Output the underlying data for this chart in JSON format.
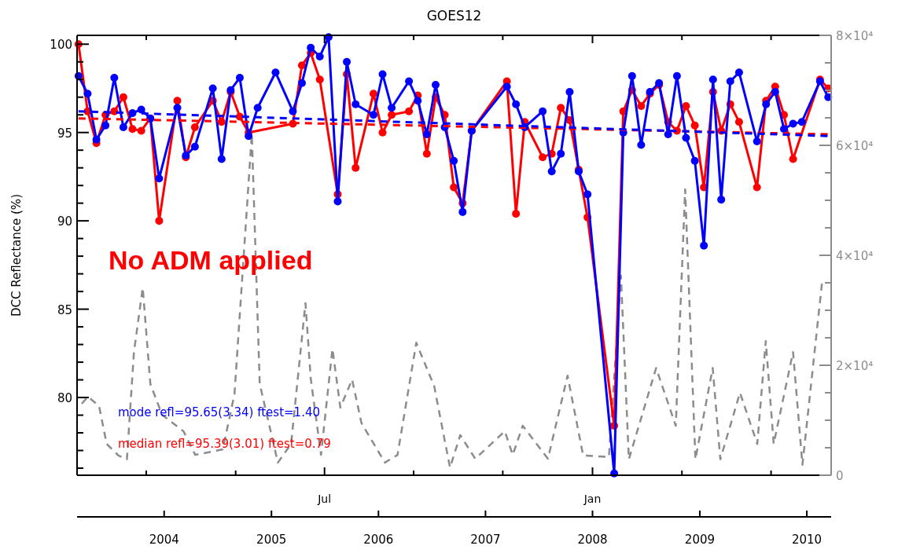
{
  "chart_data": {
    "type": "line",
    "title": "GOES12",
    "ylabel": "DCC Reflectance (%)",
    "xlim": [
      "2003-03-10",
      "2010-03-25"
    ],
    "xticks": [
      {
        "value": "2003-11-01",
        "label": null
      },
      {
        "value": "2004-09-01",
        "label": null
      },
      {
        "value": "2005-07-01",
        "label": "Jul"
      },
      {
        "value": "2006-05-01",
        "label": null
      },
      {
        "value": "2007-03-01",
        "label": null
      },
      {
        "value": "2008-01-01",
        "label": "Jan"
      },
      {
        "value": "2008-11-01",
        "label": null
      },
      {
        "value": "2009-09-01",
        "label": null
      }
    ],
    "x2lim": [
      "2003-03-10",
      "2010-03-25"
    ],
    "x2ticks": [
      {
        "value": "2004-01-01",
        "label": "2004"
      },
      {
        "value": "2005-01-01",
        "label": "2005"
      },
      {
        "value": "2006-01-01",
        "label": "2006"
      },
      {
        "value": "2007-01-01",
        "label": "2007"
      },
      {
        "value": "2008-01-01",
        "label": "2008"
      },
      {
        "value": "2009-01-01",
        "label": "2009"
      },
      {
        "value": "2010-01-01",
        "label": "2010"
      }
    ],
    "ylim": [
      75.6,
      100.5
    ],
    "yticks": [
      {
        "value": 76,
        "label": null
      },
      {
        "value": 77,
        "label": null
      },
      {
        "value": 78,
        "label": null
      },
      {
        "value": 79,
        "label": null
      },
      80,
      {
        "value": 81,
        "label": null
      },
      {
        "value": 82,
        "label": null
      },
      {
        "value": 83,
        "label": null
      },
      {
        "value": 84,
        "label": null
      },
      85,
      {
        "value": 86,
        "label": null
      },
      {
        "value": 87,
        "label": null
      },
      {
        "value": 88,
        "label": null
      },
      {
        "value": 89,
        "label": null
      },
      90,
      {
        "value": 91,
        "label": null
      },
      {
        "value": 92,
        "label": null
      },
      {
        "value": 93,
        "label": null
      },
      {
        "value": 94,
        "label": null
      },
      95,
      {
        "value": 96,
        "label": null
      },
      {
        "value": 97,
        "label": null
      },
      {
        "value": 98,
        "label": null
      },
      {
        "value": 99,
        "label": null
      },
      100
    ],
    "y2lim": [
      0,
      80000
    ],
    "y2ticks": [
      0,
      {
        "value": 5000,
        "label": null
      },
      {
        "value": 10000,
        "label": null
      },
      {
        "value": 15000,
        "label": null
      },
      {
        "value": 20000,
        "label": "2×10⁴"
      },
      {
        "value": 25000,
        "label": null
      },
      {
        "value": 30000,
        "label": null
      },
      {
        "value": 35000,
        "label": null
      },
      {
        "value": 40000,
        "label": "4×10⁴"
      },
      {
        "value": 45000,
        "label": null
      },
      {
        "value": 50000,
        "label": null
      },
      {
        "value": 55000,
        "label": null
      },
      {
        "value": 60000,
        "label": "6×10⁴"
      },
      {
        "value": 65000,
        "label": null
      },
      {
        "value": 70000,
        "label": null
      },
      {
        "value": 75000,
        "label": null
      },
      {
        "value": 80000,
        "label": "8×10⁴"
      }
    ],
    "x": [
      "2003-03-15",
      "2003-04-15",
      "2003-05-15",
      "2003-06-15",
      "2003-07-15",
      "2003-08-15",
      "2003-09-15",
      "2003-10-15",
      "2003-11-15",
      "2003-12-15",
      "2004-02-15",
      "2004-03-15",
      "2004-04-15",
      "2004-06-15",
      "2004-07-15",
      "2004-08-15",
      "2004-09-15",
      "2004-10-15",
      "2004-11-15",
      "2005-01-15",
      "2005-03-15",
      "2005-04-15",
      "2005-05-15",
      "2005-06-15",
      "2005-07-15",
      "2005-08-15",
      "2005-09-15",
      "2005-10-15",
      "2005-12-15",
      "2006-01-15",
      "2006-02-15",
      "2006-04-15",
      "2006-05-15",
      "2006-06-15",
      "2006-07-15",
      "2006-08-15",
      "2006-09-15",
      "2006-10-15",
      "2006-11-15",
      "2007-03-15",
      "2007-04-15",
      "2007-05-15",
      "2007-07-15",
      "2007-08-15",
      "2007-09-15",
      "2007-10-15",
      "2007-11-15",
      "2007-12-15",
      "2008-03-15",
      "2008-04-15",
      "2008-05-15",
      "2008-06-15",
      "2008-07-15",
      "2008-08-15",
      "2008-09-15",
      "2008-10-15",
      "2008-11-15",
      "2008-12-15",
      "2009-01-15",
      "2009-02-15",
      "2009-03-15",
      "2009-04-15",
      "2009-05-15",
      "2009-07-15",
      "2009-08-15",
      "2009-09-15",
      "2009-10-15",
      "2009-11-15",
      "2009-12-15",
      "2010-02-15",
      "2010-03-15"
    ],
    "series": [
      {
        "axis": "y2",
        "color": "#8c8c8c",
        "line_style": "dashed",
        "marker": "none",
        "x": [
          "2003-03-26",
          "2003-04-16",
          "2003-05-24",
          "2003-06-19",
          "2003-07-29",
          "2003-08-27",
          "2003-09-20",
          "2003-10-20",
          "2003-11-15",
          "2003-12-25",
          "2004-03-07",
          "2004-04-16",
          "2004-07-19",
          "2004-08-28",
          "2004-10-26",
          "2004-11-22",
          "2005-01-23",
          "2005-03-09",
          "2005-04-27",
          "2005-05-15",
          "2005-06-19",
          "2005-07-28",
          "2005-08-24",
          "2005-10-03",
          "2005-11-04",
          "2006-01-23",
          "2006-03-07",
          "2006-05-10",
          "2006-07-10",
          "2006-09-02",
          "2006-10-07",
          "2006-11-27",
          "2007-03-08",
          "2007-04-04",
          "2007-05-08",
          "2007-08-02",
          "2007-10-08",
          "2007-11-30",
          "2008-02-26",
          "2008-04-07",
          "2008-05-04",
          "2008-08-05",
          "2008-10-11",
          "2008-11-12",
          "2008-12-17",
          "2009-02-14",
          "2009-03-12",
          "2009-05-18",
          "2009-07-16",
          "2009-08-14",
          "2009-09-10",
          "2009-11-15",
          "2009-12-17",
          "2010-02-23"
        ],
        "values": [
          13000,
          14300,
          12600,
          5700,
          3600,
          2900,
          22400,
          34100,
          16600,
          11000,
          8000,
          3700,
          4700,
          14800,
          62000,
          16600,
          2300,
          5700,
          31300,
          17600,
          3700,
          23000,
          12300,
          17400,
          9500,
          2300,
          3700,
          24100,
          16200,
          1400,
          7300,
          3000,
          8000,
          3700,
          9000,
          3000,
          18100,
          3600,
          3300,
          36300,
          2900,
          19500,
          9000,
          52000,
          2900,
          19500,
          2900,
          15000,
          5700,
          24400,
          5700,
          22400,
          1900,
          35600
        ]
      },
      {
        "color": "#ff0000",
        "marker": "circle",
        "values": [
          100.0,
          96.2,
          94.4,
          96.0,
          96.2,
          97.0,
          95.2,
          95.1,
          95.8,
          90.0,
          96.8,
          93.6,
          95.3,
          96.8,
          95.6,
          97.3,
          95.9,
          95.0,
          null,
          null,
          95.5,
          98.8,
          99.5,
          98.0,
          null,
          91.5,
          98.3,
          93.0,
          97.2,
          95.0,
          96.0,
          96.2,
          97.1,
          93.8,
          97.0,
          96.0,
          91.9,
          91.0,
          95.1,
          97.9,
          90.4,
          95.6,
          93.6,
          93.8,
          96.4,
          95.7,
          92.9,
          90.2,
          78.4,
          96.2,
          97.4,
          96.5,
          97.2,
          97.7,
          95.6,
          95.1,
          96.5,
          95.4,
          91.9,
          97.3,
          95.1,
          96.6,
          95.6,
          91.9,
          96.8,
          97.6,
          96.0,
          93.5,
          null,
          98.0,
          97.5
        ]
      },
      {
        "color": "#0000ff",
        "marker": "circle",
        "values": [
          98.2,
          97.2,
          94.6,
          95.4,
          98.1,
          95.3,
          96.1,
          96.3,
          95.8,
          92.4,
          96.4,
          93.7,
          94.2,
          97.5,
          93.5,
          97.4,
          98.1,
          94.8,
          96.4,
          98.4,
          96.2,
          97.8,
          99.8,
          99.3,
          100.4,
          91.1,
          99.0,
          96.6,
          96.0,
          98.3,
          96.4,
          97.9,
          96.8,
          94.9,
          97.7,
          95.3,
          93.4,
          90.5,
          95.1,
          97.6,
          96.6,
          95.3,
          96.2,
          92.8,
          93.8,
          97.3,
          92.8,
          91.5,
          75.7,
          95.0,
          98.2,
          94.3,
          97.3,
          97.8,
          94.9,
          98.2,
          94.7,
          93.4,
          88.6,
          98.0,
          91.2,
          97.9,
          98.4,
          94.5,
          96.6,
          97.3,
          95.2,
          95.5,
          95.6,
          97.9,
          97.0
        ]
      },
      {
        "color": "#ff0000",
        "line_style": "dashed",
        "marker": "none",
        "x": [
          "2003-03-15",
          "2010-03-15"
        ],
        "values": [
          95.8,
          94.9
        ]
      },
      {
        "color": "#0000ff",
        "line_style": "dashed",
        "marker": "none",
        "x": [
          "2003-03-15",
          "2010-03-15"
        ],
        "values": [
          96.2,
          94.8
        ]
      }
    ],
    "annotations": [
      "mode refl=95.65(3.34) ftest=1.40",
      "median refl=95.39(3.01)  ftest=0.79",
      "No ADM applied"
    ]
  }
}
